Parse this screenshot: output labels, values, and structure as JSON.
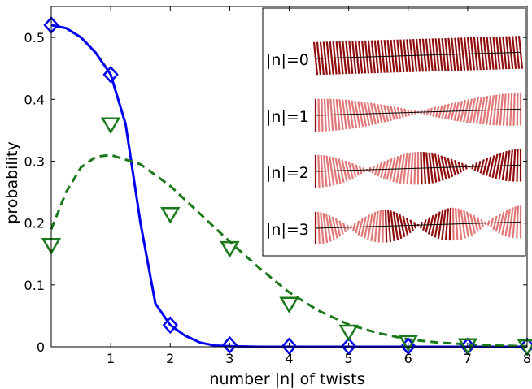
{
  "chart_data": {
    "type": "line",
    "title": "",
    "xlabel": "number |n| of twists",
    "ylabel": "probability",
    "xlim": [
      0,
      8
    ],
    "ylim": [
      0,
      0.55
    ],
    "xticks": [
      1,
      2,
      3,
      4,
      5,
      6,
      7,
      8
    ],
    "yticks": [
      0,
      0.1,
      0.2,
      0.3,
      0.4,
      0.5
    ],
    "ytick_labels": [
      "0",
      "0.1",
      "0.2",
      "0.3",
      "0.4",
      "0.5"
    ],
    "grid": false,
    "series": [
      {
        "style": "solid",
        "color": "#0000ee",
        "marker": "diamond",
        "points": {
          "x": [
            0,
            1,
            2,
            3,
            4,
            5,
            6,
            7,
            8
          ],
          "y": [
            0.52,
            0.44,
            0.035,
            0.003,
            0.001,
            0.001,
            0.001,
            0.001,
            0.001
          ]
        },
        "curve": {
          "x": [
            0,
            0.25,
            0.5,
            0.75,
            1.0,
            1.25,
            1.5,
            1.75,
            2.0,
            2.25,
            2.5,
            2.75,
            3.0,
            3.5,
            4,
            5,
            6,
            7,
            8
          ],
          "y": [
            0.52,
            0.515,
            0.5,
            0.475,
            0.44,
            0.36,
            0.2,
            0.07,
            0.035,
            0.018,
            0.007,
            0.002,
            0.001,
            0.0,
            0.0,
            0.0,
            0.0,
            0.0,
            0.0
          ]
        }
      },
      {
        "style": "dashed",
        "color": "#1a7a1a",
        "marker": "triangle-down",
        "points": {
          "x": [
            0,
            1,
            2,
            3,
            4,
            5,
            6,
            7,
            8
          ],
          "y": [
            0.165,
            0.36,
            0.215,
            0.16,
            0.07,
            0.025,
            0.008,
            0.003,
            0.001
          ]
        },
        "curve": {
          "x": [
            0,
            0.25,
            0.5,
            0.75,
            1.0,
            1.5,
            2,
            2.5,
            3,
            3.5,
            4,
            4.5,
            5,
            5.5,
            6,
            6.5,
            7,
            7.5,
            8
          ],
          "y": [
            0.19,
            0.25,
            0.29,
            0.307,
            0.31,
            0.295,
            0.26,
            0.215,
            0.17,
            0.127,
            0.088,
            0.058,
            0.036,
            0.022,
            0.012,
            0.007,
            0.004,
            0.002,
            0.001
          ]
        }
      }
    ],
    "inset": {
      "labels": [
        "|n|=0",
        "|n|=1",
        "|n|=2",
        "|n|=3"
      ],
      "twists": [
        0,
        1,
        2,
        3
      ],
      "ribbon_color": "#8b0000",
      "highlight_color": "#e07070"
    }
  }
}
